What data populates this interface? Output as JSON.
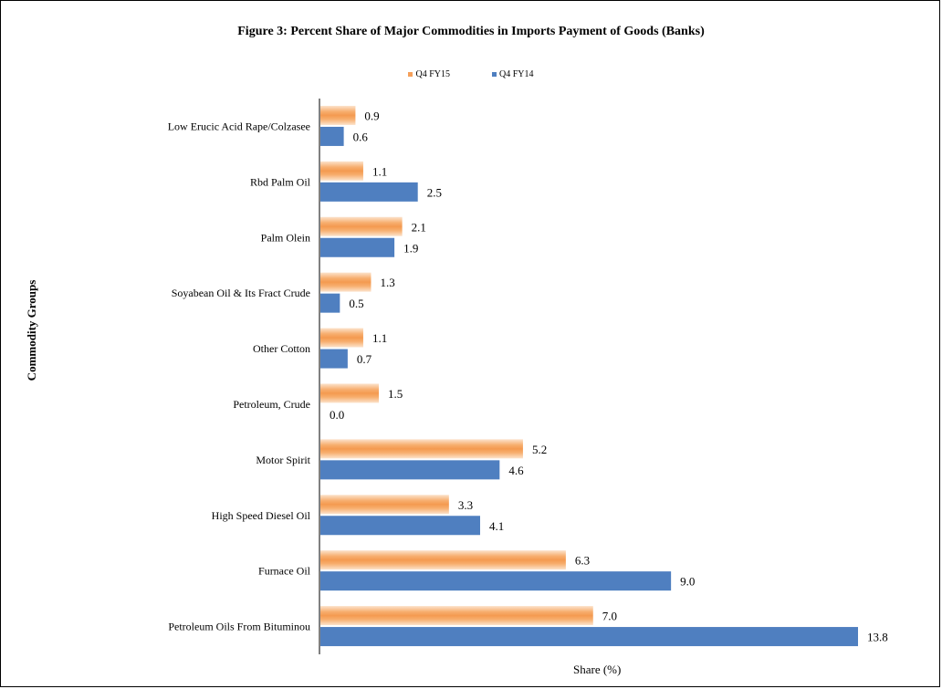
{
  "chart_data": {
    "type": "bar",
    "orientation": "horizontal",
    "title": "Figure  3: Percent Share of Major Commodities in Imports Payment of Goods (Banks)",
    "xlabel": "Share (%)",
    "ylabel": "Commodity Groups",
    "xlim": [
      0,
      14
    ],
    "grid": false,
    "legend_position": "top-center",
    "categories": [
      "Low Erucic Acid Rape/Colzasee",
      "Rbd Palm Oil",
      "Palm Olein",
      "Soyabean Oil & Its Fract Crude",
      "Other Cotton",
      "Petroleum, Crude",
      "Motor Spirit",
      "High Speed Diesel Oil",
      "Furnace Oil",
      "Petroleum Oils From Bituminou"
    ],
    "series": [
      {
        "name": "Q4 FY15",
        "color": "#F5A05A",
        "values": [
          0.9,
          1.1,
          2.1,
          1.3,
          1.1,
          1.5,
          5.2,
          3.3,
          6.3,
          7.0
        ],
        "labels": [
          "0.9",
          "1.1",
          "2.1",
          "1.3",
          "1.1",
          "1.5",
          "5.2",
          "3.3",
          "6.3",
          "7.0"
        ]
      },
      {
        "name": "Q4 FY14",
        "color": "#4F7FC0",
        "values": [
          0.6,
          2.5,
          1.9,
          0.5,
          0.7,
          0.0,
          4.6,
          4.1,
          9.0,
          13.8
        ],
        "labels": [
          "0.6",
          "2.5",
          "1.9",
          "0.5",
          "0.7",
          "0.0",
          "4.6",
          "4.1",
          "9.0",
          "13.8"
        ]
      }
    ]
  }
}
